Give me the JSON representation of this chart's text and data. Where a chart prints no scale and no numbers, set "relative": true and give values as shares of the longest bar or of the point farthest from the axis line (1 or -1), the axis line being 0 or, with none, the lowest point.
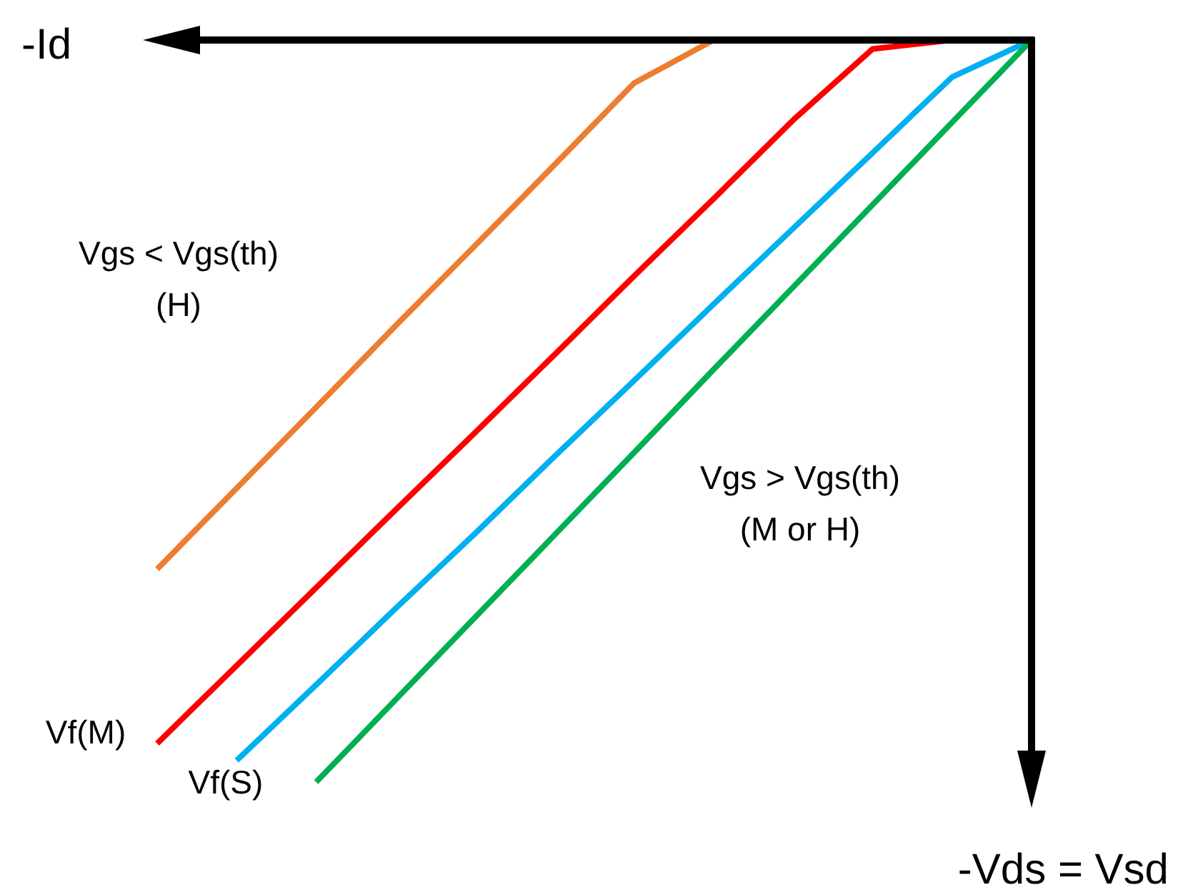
{
  "chart_data": {
    "type": "line",
    "relative": true,
    "xlabel": "-Id",
    "categories": [
      null,
      null,
      null,
      null,
      null,
      null,
      null,
      null,
      null,
      null,
      null,
      null
    ],
    "series": [
      {
        "color": "#ed7d31",
        "values": [
          -0.713,
          -0.604,
          -0.495,
          -0.385,
          -0.277,
          -0.168,
          -0.058,
          0,
          0,
          0,
          0,
          0
        ]
      },
      {
        "color": "#ff0000",
        "values": [
          -0.948,
          -0.843,
          -0.738,
          -0.633,
          -0.529,
          -0.424,
          -0.318,
          -0.214,
          -0.108,
          -0.012,
          0,
          0
        ]
      },
      {
        "color": "#00b0f0",
        "values": [
          null,
          -0.971,
          -0.869,
          -0.766,
          -0.665,
          -0.561,
          -0.459,
          -0.356,
          -0.254,
          -0.152,
          -0.05,
          0
        ]
      },
      {
        "color": "#00b050",
        "values": [
          null,
          null,
          -1,
          -0.889,
          -0.778,
          -0.667,
          -0.556,
          -0.444,
          -0.333,
          -0.222,
          -0.111,
          0
        ]
      }
    ],
    "annotations": [
      "Vgs < Vgs(th)\n(H)",
      "Vgs > Vgs(th)\n(M or H)",
      "Vf(M)",
      "Vf(S)",
      "-Vds = Vsd"
    ]
  }
}
